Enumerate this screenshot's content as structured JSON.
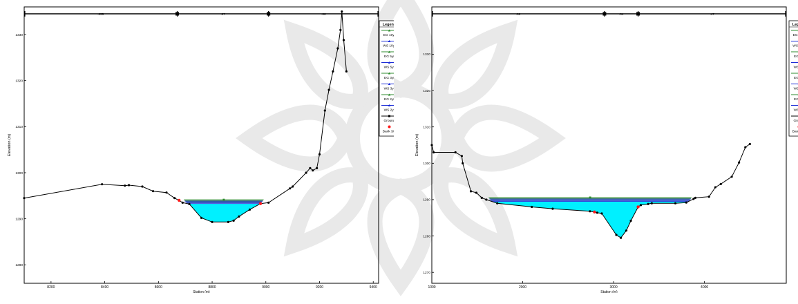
{
  "colors": {
    "water": "#00f0ff",
    "ground": "#000000",
    "eg": "#2e8b2e",
    "ws": "#1a2bd6",
    "bank": "#ff1a1a",
    "legend_bg": "#ffffff",
    "watermark": "#d8d8d8"
  },
  "chart_data": [
    {
      "type": "line",
      "title": "",
      "xlabel": "Station (m)",
      "ylabel": "Elevation (m)",
      "xlim": [
        8100,
        9420
      ],
      "ylim": [
        1276,
        1336
      ],
      "x_ticks": [
        "8200",
        "8400",
        "8600",
        "8800",
        "9000",
        "9200",
        "9400"
      ],
      "y_ticks": [
        "1280",
        "1290",
        "1300",
        "1310",
        "1320",
        "1330"
      ],
      "y_tick_values": [
        1280,
        1290,
        1300,
        1310,
        1320,
        1330
      ],
      "x_tick_values": [
        8200,
        8400,
        8600,
        8800,
        9000,
        9200,
        9400
      ],
      "top_bar_labels": [
        ".055",
        ".07",
        ".06"
      ],
      "top_bar_stations": [
        8670,
        9010
      ],
      "water_surface": 1293.3,
      "energy_grade": 1293.6,
      "ground": {
        "x": [
          8100,
          8390,
          8475,
          8490,
          8540,
          8580,
          8630,
          8660,
          8677,
          8690,
          8715,
          8760,
          8800,
          8860,
          8880,
          8900,
          8940,
          8980,
          9010,
          9090,
          9100,
          9150,
          9165,
          9175,
          9190,
          9200,
          9220,
          9235,
          9250,
          9268,
          9278,
          9283,
          9290,
          9300
        ],
        "y": [
          1294.5,
          1297.5,
          1297.2,
          1297.3,
          1297,
          1296,
          1295.7,
          1294.5,
          1294,
          1293.5,
          1293.2,
          1290.2,
          1289.3,
          1289.3,
          1289.6,
          1290.5,
          1292,
          1293.3,
          1293.5,
          1296.6,
          1297,
          1300,
          1301,
          1300.5,
          1301,
          1304,
          1313.5,
          1318,
          1322,
          1327,
          1331,
          1335,
          1328.8,
          1322
        ]
      },
      "bank_stations": [
        8677,
        8980
      ],
      "legend": {
        "title": "Legend",
        "entries": [
          "EG 10yr",
          "WS 10yr",
          "EG 5yr",
          "WS 5yr",
          "EG 3yr",
          "WS 3yr",
          "EG 2yr",
          "WS 2yr",
          "Ground",
          "Bank Sta"
        ]
      }
    },
    {
      "type": "line",
      "title": "",
      "xlabel": "Station (m)",
      "ylabel": "Elevation (m)",
      "xlim": [
        1000,
        4900
      ],
      "ylim": [
        1267,
        1343
      ],
      "x_ticks": [
        "1000",
        "2000",
        "3000",
        "4000"
      ],
      "x_tick_values": [
        1000,
        2000,
        3000,
        4000
      ],
      "y_ticks": [
        "1270",
        "1280",
        "1290",
        "1300",
        "1310",
        "1320",
        "1330"
      ],
      "y_tick_values": [
        1270,
        1280,
        1290,
        1300,
        1310,
        1320,
        1330
      ],
      "top_bar_labels": [
        ".06",
        ".04",
        ".47"
      ],
      "top_bar_stations": [
        2900,
        3270
      ],
      "water_surface": 1289.5,
      "energy_grade": 1289.9,
      "ground": {
        "x": [
          1000,
          1020,
          1260,
          1330,
          1340,
          1430,
          1490,
          1550,
          1600,
          1720,
          2100,
          2330,
          2740,
          2790,
          2820,
          2870,
          3030,
          3080,
          3140,
          3190,
          3270,
          3300,
          3380,
          3420,
          3680,
          3800,
          3880,
          3900,
          4050,
          4120,
          4180,
          4300,
          4380,
          4450,
          4500
        ],
        "y": [
          1305,
          1303,
          1303,
          1302,
          1300,
          1292.3,
          1291.9,
          1290.5,
          1290,
          1289,
          1288,
          1287.5,
          1286.8,
          1286.6,
          1286.4,
          1286.2,
          1280.3,
          1279.5,
          1281.5,
          1284.2,
          1288,
          1288.5,
          1288.8,
          1289,
          1289,
          1289.2,
          1290.2,
          1290.5,
          1290.8,
          1293.4,
          1294.3,
          1296.3,
          1300.2,
          1304.4,
          1305.3
        ]
      },
      "bank_stations": [
        2790,
        3270
      ],
      "legend": {
        "title": "Legend",
        "entries": [
          "EG 10yr",
          "WS 10yr",
          "EG 5yr",
          "WS 5yr",
          "EG 3yr",
          "WS 3yr",
          "EG 2yr",
          "WS 2yr",
          "Ground",
          "Bank Sta"
        ]
      }
    }
  ]
}
